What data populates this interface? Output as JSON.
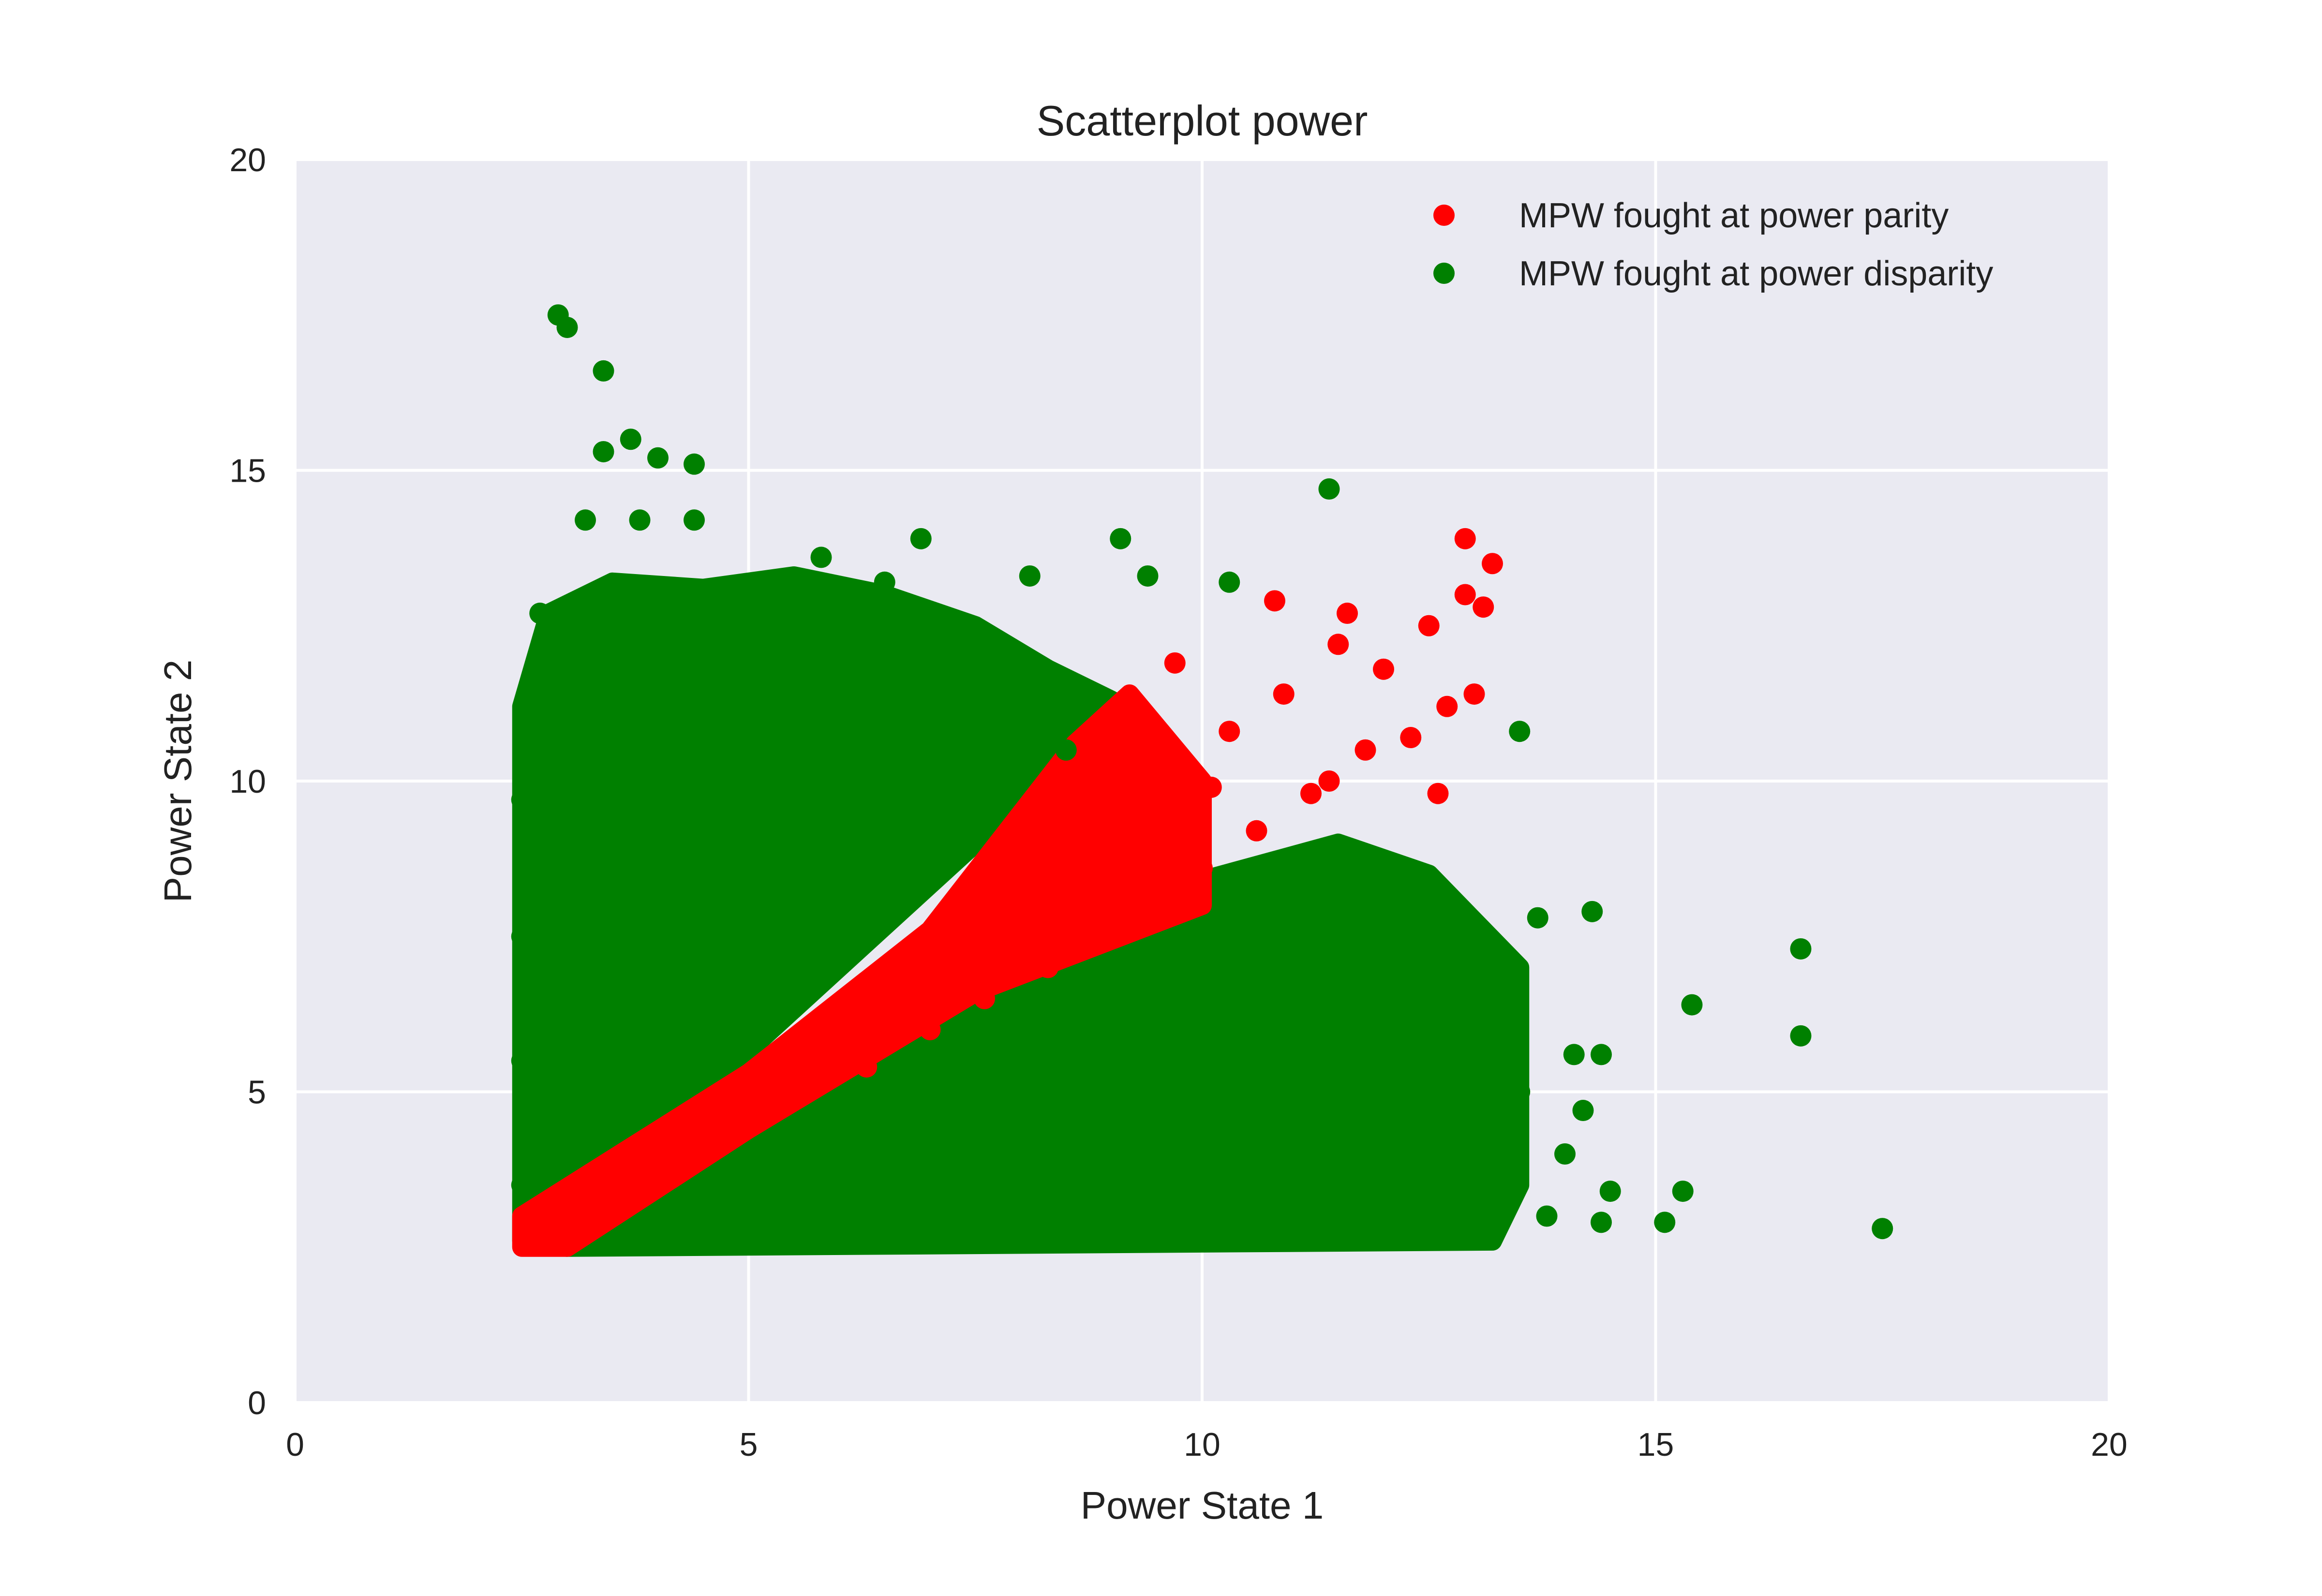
{
  "chart_data": {
    "type": "scatter",
    "title": "Scatterplot power",
    "xlabel": "Power State 1",
    "ylabel": "Power State 2",
    "xlim": [
      0,
      20
    ],
    "ylim": [
      0,
      20
    ],
    "x_ticks": [
      "0",
      "5",
      "10",
      "15",
      "20"
    ],
    "y_ticks": [
      "0",
      "5",
      "10",
      "15",
      "20"
    ],
    "grid": true,
    "background": "#eaeaf2",
    "legend_position": "top-right",
    "series": [
      {
        "name": "MPW fought at power parity",
        "color": "#ff0000",
        "points": [
          [
            2.6,
            2.6
          ],
          [
            2.9,
            2.8
          ],
          [
            3.2,
            3.1
          ],
          [
            3.6,
            3.4
          ],
          [
            4.0,
            3.6
          ],
          [
            4.3,
            4.1
          ],
          [
            4.6,
            4.2
          ],
          [
            5.0,
            4.5
          ],
          [
            5.2,
            5.1
          ],
          [
            5.6,
            5.0
          ],
          [
            6.0,
            5.6
          ],
          [
            6.3,
            5.4
          ],
          [
            6.6,
            6.2
          ],
          [
            7.0,
            6.0
          ],
          [
            7.3,
            6.9
          ],
          [
            7.6,
            6.5
          ],
          [
            8.0,
            7.5
          ],
          [
            8.3,
            7.0
          ],
          [
            8.6,
            8.2
          ],
          [
            9.0,
            7.6
          ],
          [
            9.2,
            9.0
          ],
          [
            9.5,
            8.2
          ],
          [
            9.8,
            9.5
          ],
          [
            10.0,
            8.6
          ],
          [
            10.3,
            10.8
          ],
          [
            10.6,
            9.2
          ],
          [
            10.9,
            11.4
          ],
          [
            11.2,
            9.8
          ],
          [
            11.5,
            12.2
          ],
          [
            11.8,
            10.5
          ],
          [
            12.0,
            11.8
          ],
          [
            12.3,
            10.7
          ],
          [
            12.5,
            12.5
          ],
          [
            12.7,
            11.2
          ],
          [
            12.9,
            13.0
          ],
          [
            13.0,
            11.4
          ],
          [
            13.2,
            13.5
          ],
          [
            12.9,
            13.9
          ],
          [
            13.1,
            12.8
          ],
          [
            10.8,
            12.9
          ],
          [
            11.6,
            12.7
          ],
          [
            9.7,
            11.9
          ],
          [
            11.4,
            10.0
          ],
          [
            12.6,
            9.8
          ],
          [
            10.1,
            9.9
          ]
        ]
      },
      {
        "name": "MPW fought at power disparity",
        "color": "#008000",
        "points": [
          [
            2.9,
            17.5
          ],
          [
            3.0,
            17.3
          ],
          [
            3.4,
            16.6
          ],
          [
            3.7,
            15.5
          ],
          [
            3.4,
            15.3
          ],
          [
            4.0,
            15.2
          ],
          [
            4.4,
            15.1
          ],
          [
            3.2,
            14.2
          ],
          [
            3.8,
            14.2
          ],
          [
            4.4,
            14.2
          ],
          [
            5.8,
            13.6
          ],
          [
            6.9,
            13.9
          ],
          [
            9.1,
            13.9
          ],
          [
            9.4,
            13.3
          ],
          [
            10.3,
            13.2
          ],
          [
            11.4,
            14.7
          ],
          [
            8.1,
            13.3
          ],
          [
            6.5,
            13.2
          ],
          [
            2.7,
            12.7
          ],
          [
            2.6,
            11.5
          ],
          [
            2.5,
            9.7
          ],
          [
            2.5,
            7.5
          ],
          [
            2.5,
            5.5
          ],
          [
            2.5,
            3.5
          ],
          [
            3.0,
            12.0
          ],
          [
            3.5,
            10.0
          ],
          [
            4.0,
            11.5
          ],
          [
            4.5,
            9.0
          ],
          [
            5.0,
            12.0
          ],
          [
            5.5,
            10.5
          ],
          [
            6.0,
            11.8
          ],
          [
            6.5,
            10.0
          ],
          [
            7.0,
            11.5
          ],
          [
            7.5,
            10.5
          ],
          [
            8.0,
            11.0
          ],
          [
            8.5,
            10.5
          ],
          [
            3.0,
            6.0
          ],
          [
            3.5,
            5.0
          ],
          [
            4.0,
            7.5
          ],
          [
            3.2,
            4.2
          ],
          [
            5.0,
            2.7
          ],
          [
            7.0,
            2.8
          ],
          [
            9.0,
            2.8
          ],
          [
            11.0,
            2.7
          ],
          [
            12.5,
            2.7
          ],
          [
            13.0,
            6.5
          ],
          [
            13.5,
            5.0
          ],
          [
            13.0,
            3.5
          ],
          [
            12.0,
            4.5
          ],
          [
            11.0,
            6.5
          ],
          [
            10.0,
            5.0
          ],
          [
            9.0,
            4.0
          ],
          [
            8.0,
            5.5
          ],
          [
            7.0,
            3.5
          ],
          [
            6.0,
            4.0
          ],
          [
            12.0,
            8.0
          ],
          [
            13.5,
            10.8
          ],
          [
            13.7,
            7.8
          ],
          [
            14.3,
            7.9
          ],
          [
            14.1,
            5.6
          ],
          [
            14.4,
            5.6
          ],
          [
            14.2,
            4.7
          ],
          [
            14.0,
            4.0
          ],
          [
            14.5,
            3.4
          ],
          [
            14.4,
            2.9
          ],
          [
            15.1,
            2.9
          ],
          [
            15.3,
            3.4
          ],
          [
            15.4,
            6.4
          ],
          [
            16.6,
            7.3
          ],
          [
            16.6,
            5.9
          ],
          [
            17.5,
            2.8
          ],
          [
            13.8,
            3.0
          ]
        ]
      }
    ]
  }
}
